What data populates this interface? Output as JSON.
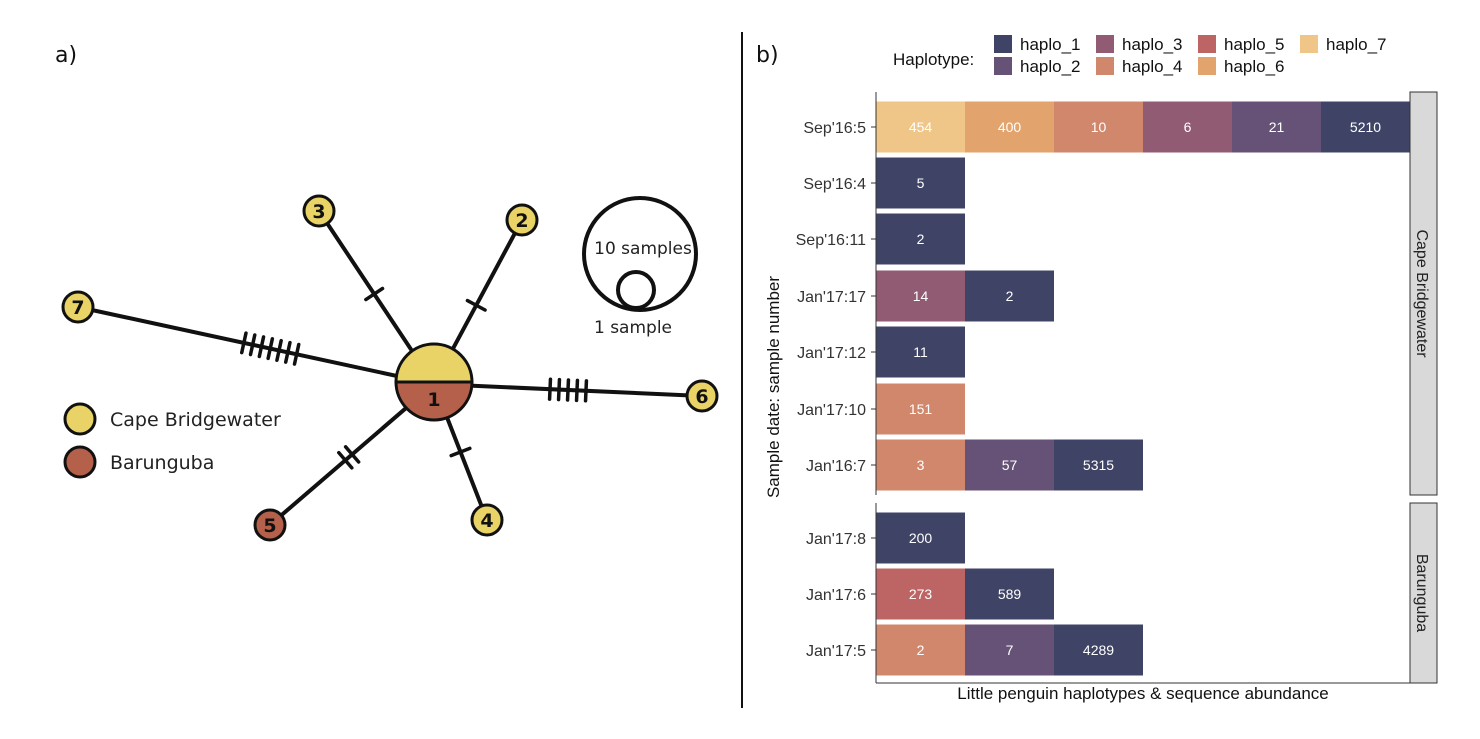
{
  "panels": {
    "a": {
      "letter": "a)",
      "network": {
        "colors": {
          "Cape Bridgewater": "#E9D266",
          "Barunguba": "#B5604A"
        },
        "center": {
          "label": "1"
        },
        "nodes": [
          {
            "id": "node-3",
            "label": "3",
            "population": "Cape Bridgewater",
            "mutations": 1
          },
          {
            "id": "node-2",
            "label": "2",
            "population": "Cape Bridgewater",
            "mutations": 1
          },
          {
            "id": "node-7",
            "label": "7",
            "population": "Cape Bridgewater",
            "mutations": 7
          },
          {
            "id": "node-6",
            "label": "6",
            "population": "Cape Bridgewater",
            "mutations": 5
          },
          {
            "id": "node-5",
            "label": "5",
            "population": "Barunguba",
            "mutations": 2
          },
          {
            "id": "node-4",
            "label": "4",
            "population": "Cape Bridgewater",
            "mutations": 1
          }
        ]
      },
      "population_legend": [
        {
          "name": "Cape Bridgewater",
          "color": "#E9D266"
        },
        {
          "name": "Barunguba",
          "color": "#B5604A"
        }
      ],
      "size_legend": {
        "large": "10 samples",
        "small": "1 sample"
      }
    },
    "b": {
      "letter": "b)"
    }
  },
  "chart_data": {
    "type": "bar",
    "orientation": "horizontal",
    "stacked": true,
    "xlabel": "Little penguin haplotypes & sequence abundance",
    "ylabel": "Sample date: sample number",
    "legend": {
      "title": "Haplotype:",
      "position": "top",
      "entries": [
        {
          "name": "haplo_1",
          "color": "#3F4466"
        },
        {
          "name": "haplo_2",
          "color": "#655276"
        },
        {
          "name": "haplo_3",
          "color": "#905B73"
        },
        {
          "name": "haplo_4",
          "color": "#D0876C"
        },
        {
          "name": "haplo_5",
          "color": "#BC6564"
        },
        {
          "name": "haplo_6",
          "color": "#E2A36D"
        },
        {
          "name": "haplo_7",
          "color": "#EFC688"
        }
      ]
    },
    "facets": [
      {
        "name": "Cape Bridgewater",
        "rows": [
          {
            "label": "Sep'16:5",
            "segments": [
              {
                "haplotype": "haplo_7",
                "value": 454
              },
              {
                "haplotype": "haplo_6",
                "value": 400
              },
              {
                "haplotype": "haplo_4",
                "value": 10
              },
              {
                "haplotype": "haplo_3",
                "value": 6
              },
              {
                "haplotype": "haplo_2",
                "value": 21
              },
              {
                "haplotype": "haplo_1",
                "value": 5210
              }
            ]
          },
          {
            "label": "Sep'16:4",
            "segments": [
              {
                "haplotype": "haplo_1",
                "value": 5
              }
            ]
          },
          {
            "label": "Sep'16:11",
            "segments": [
              {
                "haplotype": "haplo_1",
                "value": 2
              }
            ]
          },
          {
            "label": "Jan'17:17",
            "segments": [
              {
                "haplotype": "haplo_3",
                "value": 14
              },
              {
                "haplotype": "haplo_1",
                "value": 2
              }
            ]
          },
          {
            "label": "Jan'17:12",
            "segments": [
              {
                "haplotype": "haplo_1",
                "value": 11
              }
            ]
          },
          {
            "label": "Jan'17:10",
            "segments": [
              {
                "haplotype": "haplo_4",
                "value": 151
              }
            ]
          },
          {
            "label": "Jan'16:7",
            "segments": [
              {
                "haplotype": "haplo_4",
                "value": 3
              },
              {
                "haplotype": "haplo_2",
                "value": 57
              },
              {
                "haplotype": "haplo_1",
                "value": 5315
              }
            ]
          }
        ]
      },
      {
        "name": "Barunguba",
        "rows": [
          {
            "label": "Jan'17:8",
            "segments": [
              {
                "haplotype": "haplo_1",
                "value": 200
              }
            ]
          },
          {
            "label": "Jan'17:6",
            "segments": [
              {
                "haplotype": "haplo_5",
                "value": 273
              },
              {
                "haplotype": "haplo_1",
                "value": 589
              }
            ]
          },
          {
            "label": "Jan'17:5",
            "segments": [
              {
                "haplotype": "haplo_4",
                "value": 2
              },
              {
                "haplotype": "haplo_2",
                "value": 7
              },
              {
                "haplotype": "haplo_1",
                "value": 4289
              }
            ]
          }
        ]
      }
    ]
  }
}
